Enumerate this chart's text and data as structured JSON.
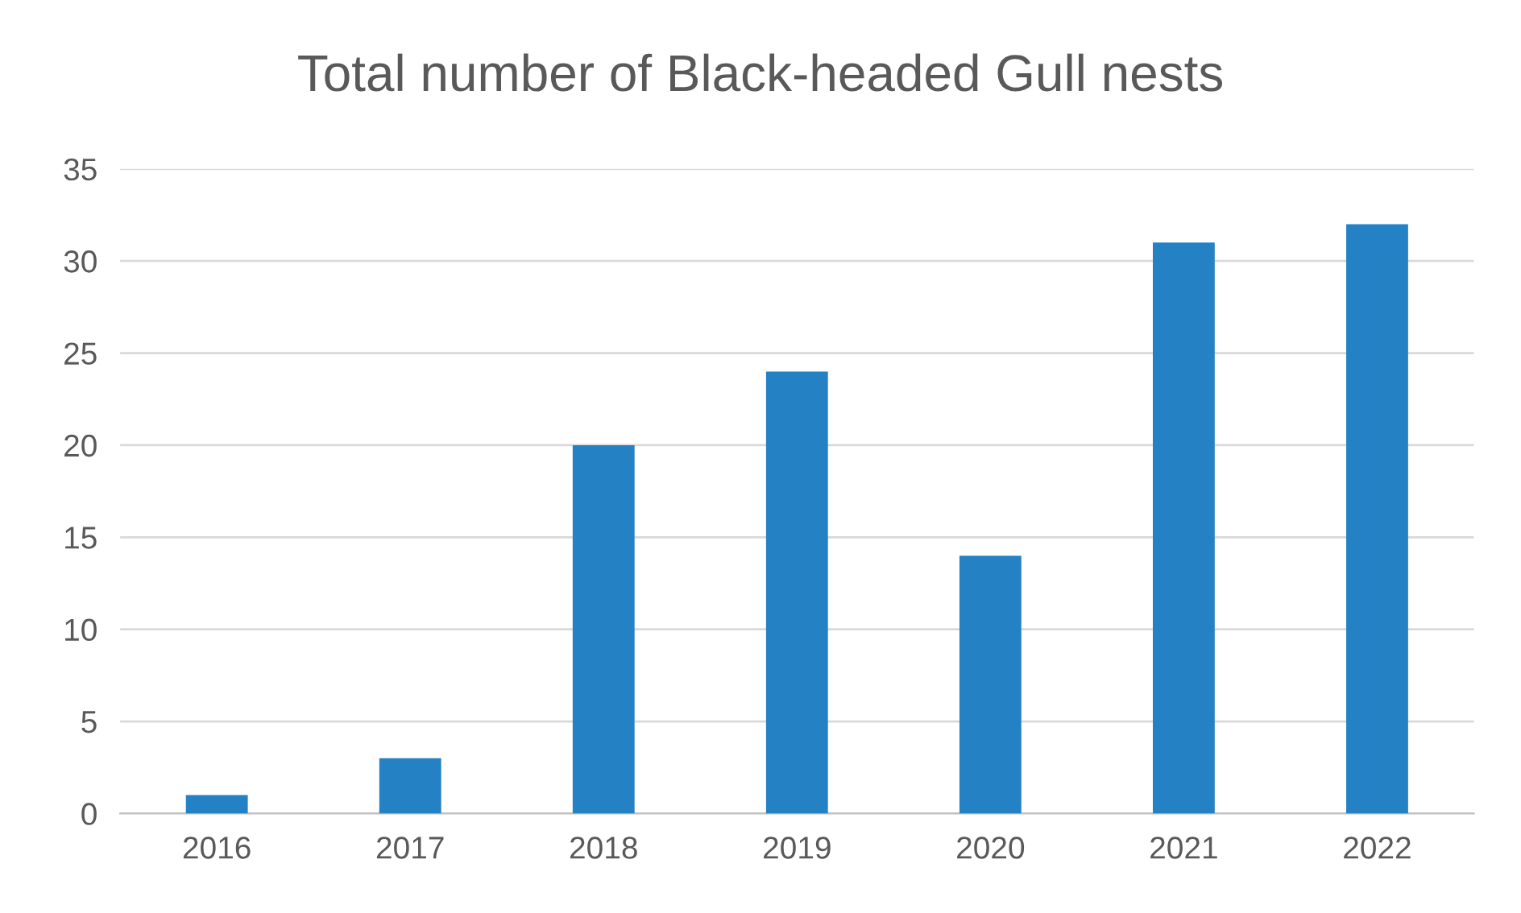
{
  "chart_data": {
    "type": "bar",
    "title": "Total number of Black-headed Gull nests",
    "categories": [
      "2016",
      "2017",
      "2018",
      "2019",
      "2020",
      "2021",
      "2022"
    ],
    "values": [
      1,
      3,
      20,
      24,
      14,
      31,
      32
    ],
    "color": "#2481c3",
    "ylim": [
      0,
      35
    ],
    "yticks": [
      0,
      5,
      10,
      15,
      20,
      25,
      30,
      35
    ],
    "grid": "y",
    "legend": false
  }
}
